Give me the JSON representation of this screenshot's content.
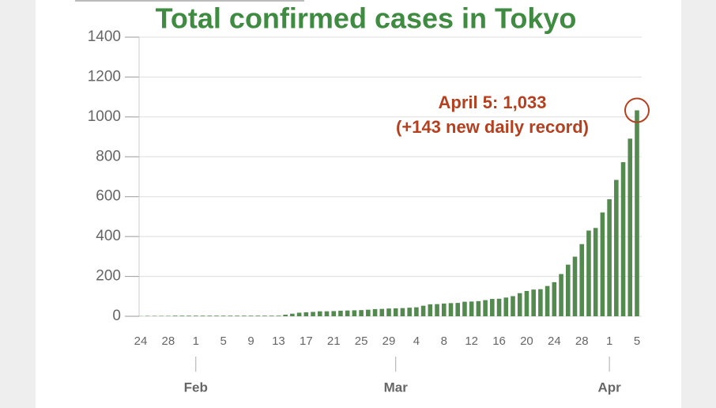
{
  "chart_data": {
    "type": "bar",
    "title": "Total confirmed cases in Tokyo",
    "annotations": [
      "April 5: 1,033",
      "(+143 new daily record)"
    ],
    "categories": [
      "24",
      null,
      null,
      null,
      "28",
      null,
      null,
      null,
      "1",
      null,
      null,
      null,
      "5",
      null,
      null,
      null,
      "9",
      null,
      null,
      null,
      "13",
      null,
      null,
      null,
      "17",
      null,
      null,
      null,
      "21",
      null,
      null,
      null,
      "25",
      null,
      null,
      null,
      "29",
      null,
      null,
      null,
      "4",
      null,
      null,
      null,
      "8",
      null,
      null,
      null,
      "12",
      null,
      null,
      null,
      "16",
      null,
      null,
      null,
      "20",
      null,
      null,
      null,
      "24",
      null,
      null,
      null,
      "28",
      null,
      null,
      null,
      "1",
      null,
      null,
      null,
      "5"
    ],
    "values": [
      1,
      2,
      2,
      2,
      2,
      3,
      3,
      3,
      3,
      3,
      3,
      3,
      3,
      3,
      3,
      3,
      3,
      3,
      3,
      3,
      3,
      8,
      13,
      18,
      20,
      22,
      25,
      25,
      26,
      28,
      29,
      30,
      31,
      33,
      36,
      37,
      39,
      40,
      41,
      43,
      45,
      53,
      60,
      61,
      64,
      66,
      67,
      73,
      74,
      76,
      81,
      87,
      88,
      94,
      101,
      116,
      127,
      134,
      136,
      152,
      171,
      212,
      259,
      299,
      362,
      430,
      443,
      521,
      587,
      684,
      773,
      891,
      1033
    ],
    "color": "#548a4f",
    "x_groups": [
      {
        "label": "Feb",
        "start": 8
      },
      {
        "label": "Mar",
        "start": 37
      },
      {
        "label": "Apr",
        "start": 68
      }
    ],
    "ylim": [
      0,
      1400
    ],
    "yticks": [
      0,
      200,
      400,
      600,
      800,
      1000,
      1200,
      1400
    ],
    "grid": true
  }
}
